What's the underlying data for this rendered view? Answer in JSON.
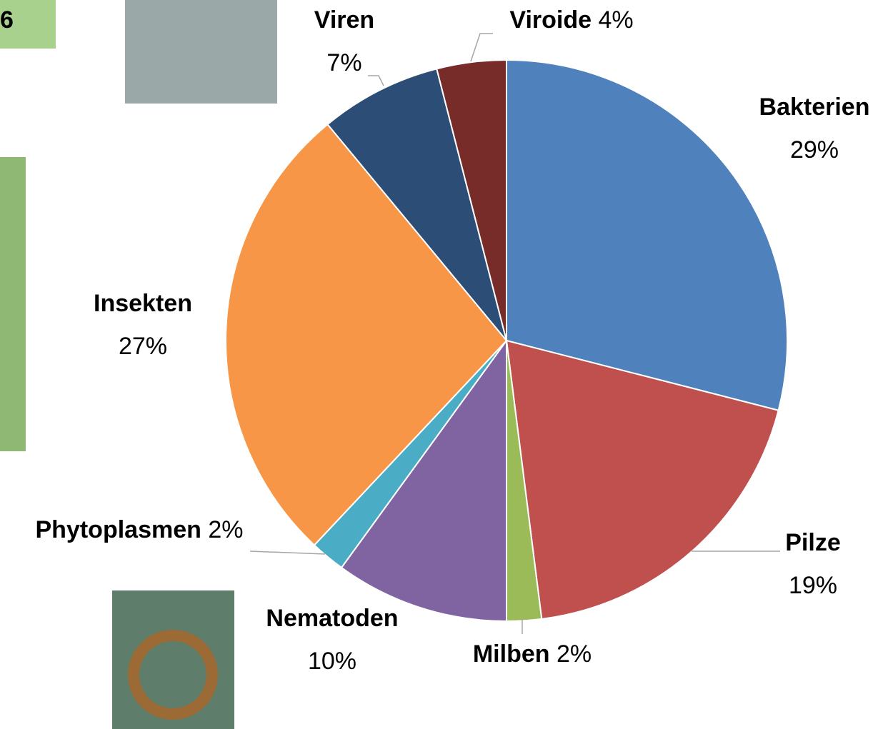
{
  "corner_label": "6",
  "chart_data": {
    "type": "pie",
    "categories": [
      "Bakterien",
      "Pilze",
      "Milben",
      "Nematoden",
      "Phytoplasmen",
      "Insekten",
      "Viren",
      "Viroide"
    ],
    "values": [
      29,
      19,
      2,
      10,
      2,
      27,
      7,
      4
    ],
    "value_labels": [
      "29%",
      "19%",
      "2%",
      "10%",
      "2%",
      "27%",
      "7%",
      "4%"
    ],
    "colors": [
      "#4f81bd",
      "#c0504d",
      "#9bbb59",
      "#8064a2",
      "#4bacc6",
      "#f79646",
      "#2c4d75",
      "#772c2a"
    ]
  }
}
